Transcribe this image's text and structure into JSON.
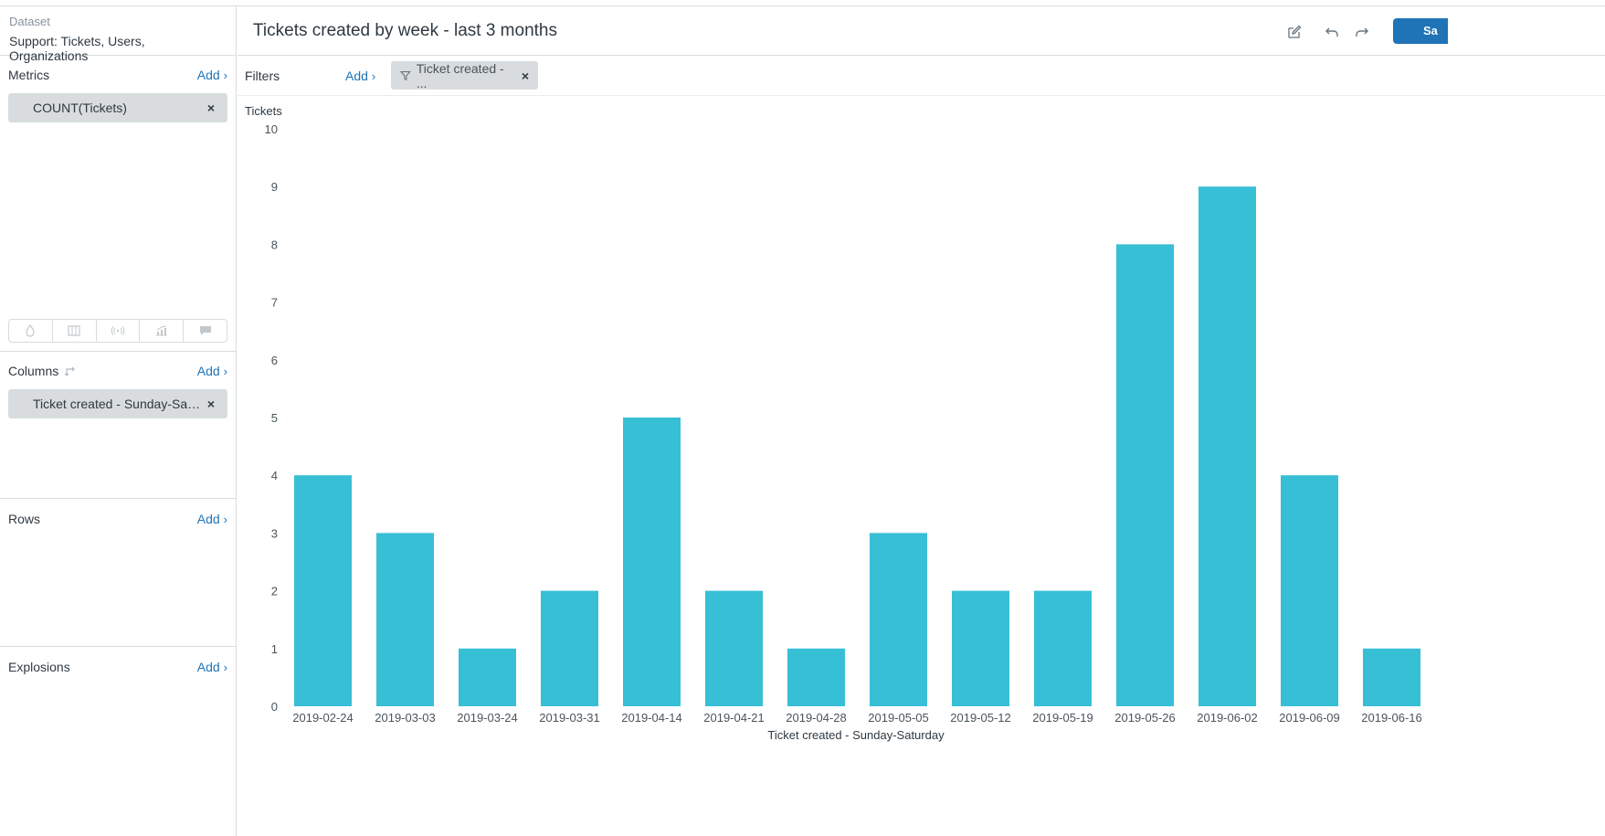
{
  "dataset": {
    "label": "Dataset",
    "value": "Support: Tickets, Users, Organizations"
  },
  "sidebar": {
    "metrics": {
      "title": "Metrics",
      "add": "Add",
      "pill": "COUNT(Tickets)"
    },
    "columns": {
      "title": "Columns",
      "add": "Add",
      "pill": "Ticket created - Sunday-Saturday"
    },
    "rows": {
      "title": "Rows",
      "add": "Add"
    },
    "explosions": {
      "title": "Explosions",
      "add": "Add"
    },
    "viz_buttons": [
      "drop-icon",
      "columns-icon",
      "broadcast-icon",
      "chart-icon",
      "comment-icon"
    ]
  },
  "header": {
    "title": "Tickets created by week - last 3 months",
    "save_label": "Sa"
  },
  "filters": {
    "label": "Filters",
    "add": "Add",
    "chip": "Ticket created - ..."
  },
  "colors": {
    "bar": "#37bfd6",
    "accent": "#1f73b7"
  },
  "chart_data": {
    "type": "bar",
    "ylabel": "Tickets",
    "xlabel": "Ticket created - Sunday-Saturday",
    "ylim": [
      0,
      10
    ],
    "yticks": [
      0,
      1,
      2,
      3,
      4,
      5,
      6,
      7,
      8,
      9,
      10
    ],
    "categories": [
      "2019-02-24",
      "2019-03-03",
      "2019-03-24",
      "2019-03-31",
      "2019-04-14",
      "2019-04-21",
      "2019-04-28",
      "2019-05-05",
      "2019-05-12",
      "2019-05-19",
      "2019-05-26",
      "2019-06-02",
      "2019-06-09",
      "2019-06-16"
    ],
    "values": [
      4,
      3,
      1,
      2,
      5,
      2,
      1,
      3,
      2,
      2,
      8,
      9,
      4,
      1
    ]
  }
}
